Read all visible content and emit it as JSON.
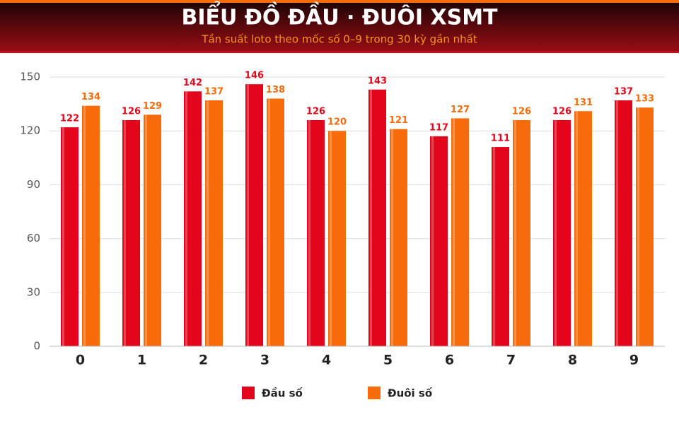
{
  "chart_data": {
    "type": "bar",
    "title": "BIỂU ĐỒ ĐẦU · ĐUÔI XSMT",
    "subtitle": "Tần suất loto theo mốc số 0–9 trong 30 kỳ gần nhất",
    "categories": [
      "0",
      "1",
      "2",
      "3",
      "4",
      "5",
      "6",
      "7",
      "8",
      "9"
    ],
    "series": [
      {
        "name": "Đầu số",
        "color": "#e3051b",
        "values": [
          122,
          126,
          142,
          146,
          126,
          143,
          117,
          111,
          126,
          137
        ]
      },
      {
        "name": "Đuôi số",
        "color": "#f76b0a",
        "values": [
          134,
          129,
          137,
          138,
          120,
          121,
          127,
          126,
          131,
          133
        ]
      }
    ],
    "ylim": [
      0,
      150
    ],
    "yticks": [
      0,
      30,
      60,
      90,
      120,
      150
    ],
    "grid": true,
    "legend": "bottom"
  }
}
